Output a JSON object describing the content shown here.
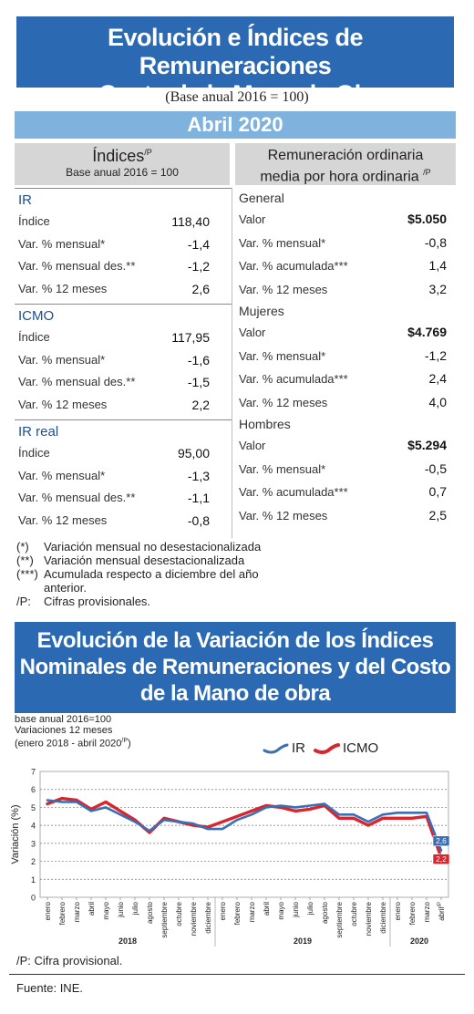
{
  "header": {
    "title_line1": "Evolución e Índices de Remuneraciones",
    "title_line2": "y Costo de la Mano de Obra",
    "base": "(Base anual 2016 = 100)",
    "month": "Abril 2020"
  },
  "indices": {
    "title": "Índices",
    "title_sup": "/P",
    "subtitle": "Base anual 2016 = 100",
    "sections": [
      {
        "name": "IR",
        "rows": [
          {
            "label": "Índice",
            "value": "118,40"
          },
          {
            "label": "Var. % mensual*",
            "value": "-1,4"
          },
          {
            "label": "Var. % mensual des.**",
            "value": "-1,2"
          },
          {
            "label": "Var. % 12 meses",
            "value": "2,6"
          }
        ]
      },
      {
        "name": "ICMO",
        "rows": [
          {
            "label": "Índice",
            "value": "117,95"
          },
          {
            "label": "Var. % mensual*",
            "value": "-1,6"
          },
          {
            "label": "Var. % mensual des.**",
            "value": "-1,5"
          },
          {
            "label": "Var. % 12 meses",
            "value": "2,2"
          }
        ]
      },
      {
        "name": "IR real",
        "rows": [
          {
            "label": "Índice",
            "value": "95,00"
          },
          {
            "label": "Var. % mensual*",
            "value": "-1,3"
          },
          {
            "label": "Var. % mensual des.**",
            "value": "-1,1"
          },
          {
            "label": "Var. % 12 meses",
            "value": "-0,8"
          }
        ]
      }
    ]
  },
  "remuneracion": {
    "title_line1": "Remuneración ordinaria",
    "title_line2": "media por hora ordinaria",
    "title_sup": "/P",
    "groups": [
      {
        "name": "General",
        "rows": [
          {
            "label": "Valor",
            "value": "$5.050"
          },
          {
            "label": "Var. % mensual*",
            "value": "-0,8"
          },
          {
            "label": "Var. % acumulada***",
            "value": "1,4"
          },
          {
            "label": "Var. % 12 meses",
            "value": "3,2"
          }
        ]
      },
      {
        "name": "Mujeres",
        "rows": [
          {
            "label": "Valor",
            "value": "$4.769"
          },
          {
            "label": "Var. % mensual*",
            "value": "-1,2"
          },
          {
            "label": "Var. % acumulada***",
            "value": "2,4"
          },
          {
            "label": "Var. % 12 meses",
            "value": "4,0"
          }
        ]
      },
      {
        "name": "Hombres",
        "rows": [
          {
            "label": "Valor",
            "value": "$5.294"
          },
          {
            "label": "Var. % mensual*",
            "value": "-0,5"
          },
          {
            "label": "Var. % acumulada***",
            "value": "0,7"
          },
          {
            "label": "Var. % 12 meses",
            "value": "2,5"
          }
        ]
      }
    ]
  },
  "notes": [
    {
      "key": "(*)",
      "text": "Variación mensual no desestacionalizada"
    },
    {
      "key": "(**)",
      "text": "Variación mensual desestacionalizada"
    },
    {
      "key": "(***)",
      "text": "Acumulada respecto a diciembre del año anterior."
    },
    {
      "key": "/P:",
      "text": "Cifras provisionales."
    }
  ],
  "chart_section": {
    "title_line1": "Evolución de la Variación de los Índices",
    "title_line2": "Nominales de Remuneraciones y del Costo",
    "title_line3": "de la Mano de obra",
    "sub1": "base anual 2016=100",
    "sub2": "Variaciones 12 meses",
    "sub3": "(enero 2018 - abril 2020",
    "sub3_sup": "/P",
    "sub3_end": ")",
    "footnote": "/P: Cifra provisional.",
    "source": "Fuente: INE."
  },
  "chart_data": {
    "type": "line",
    "ylabel": "Variación (%)",
    "ylim": [
      0,
      7
    ],
    "yticks": [
      0,
      1,
      2,
      3,
      4,
      5,
      6,
      7
    ],
    "grid": true,
    "legend": "top-right",
    "x": [
      "enero",
      "febrero",
      "marzo",
      "abril",
      "mayo",
      "junio",
      "julio",
      "agosto",
      "septiembre",
      "octubre",
      "noviembre",
      "diciembre",
      "enero",
      "febrero",
      "marzo",
      "abril",
      "mayo",
      "junio",
      "julio",
      "agosto",
      "septiembre",
      "octubre",
      "noviembre",
      "diciembre",
      "enero",
      "febrero",
      "marzo",
      "abril"
    ],
    "x_last_sup": "/P",
    "years": [
      {
        "label": "2018",
        "start": 0,
        "end": 11
      },
      {
        "label": "2019",
        "start": 12,
        "end": 23
      },
      {
        "label": "2020",
        "start": 24,
        "end": 27
      }
    ],
    "series": [
      {
        "name": "IR",
        "color": "#3a6fb5",
        "end_label": "2,6",
        "values": [
          5.4,
          5.3,
          5.3,
          4.8,
          5.0,
          4.6,
          4.2,
          3.7,
          4.3,
          4.2,
          4.1,
          3.8,
          3.8,
          4.3,
          4.6,
          5.0,
          5.1,
          5.0,
          5.1,
          5.2,
          4.6,
          4.6,
          4.2,
          4.6,
          4.7,
          4.7,
          4.7,
          2.6
        ]
      },
      {
        "name": "ICMO",
        "color": "#d9262c",
        "end_label": "2,2",
        "values": [
          5.2,
          5.5,
          5.4,
          4.9,
          5.3,
          4.8,
          4.3,
          3.6,
          4.4,
          4.2,
          4.0,
          3.9,
          4.2,
          4.5,
          4.8,
          5.1,
          5.0,
          4.8,
          4.9,
          5.1,
          4.4,
          4.4,
          4.0,
          4.4,
          4.4,
          4.4,
          4.5,
          2.2
        ]
      }
    ]
  }
}
